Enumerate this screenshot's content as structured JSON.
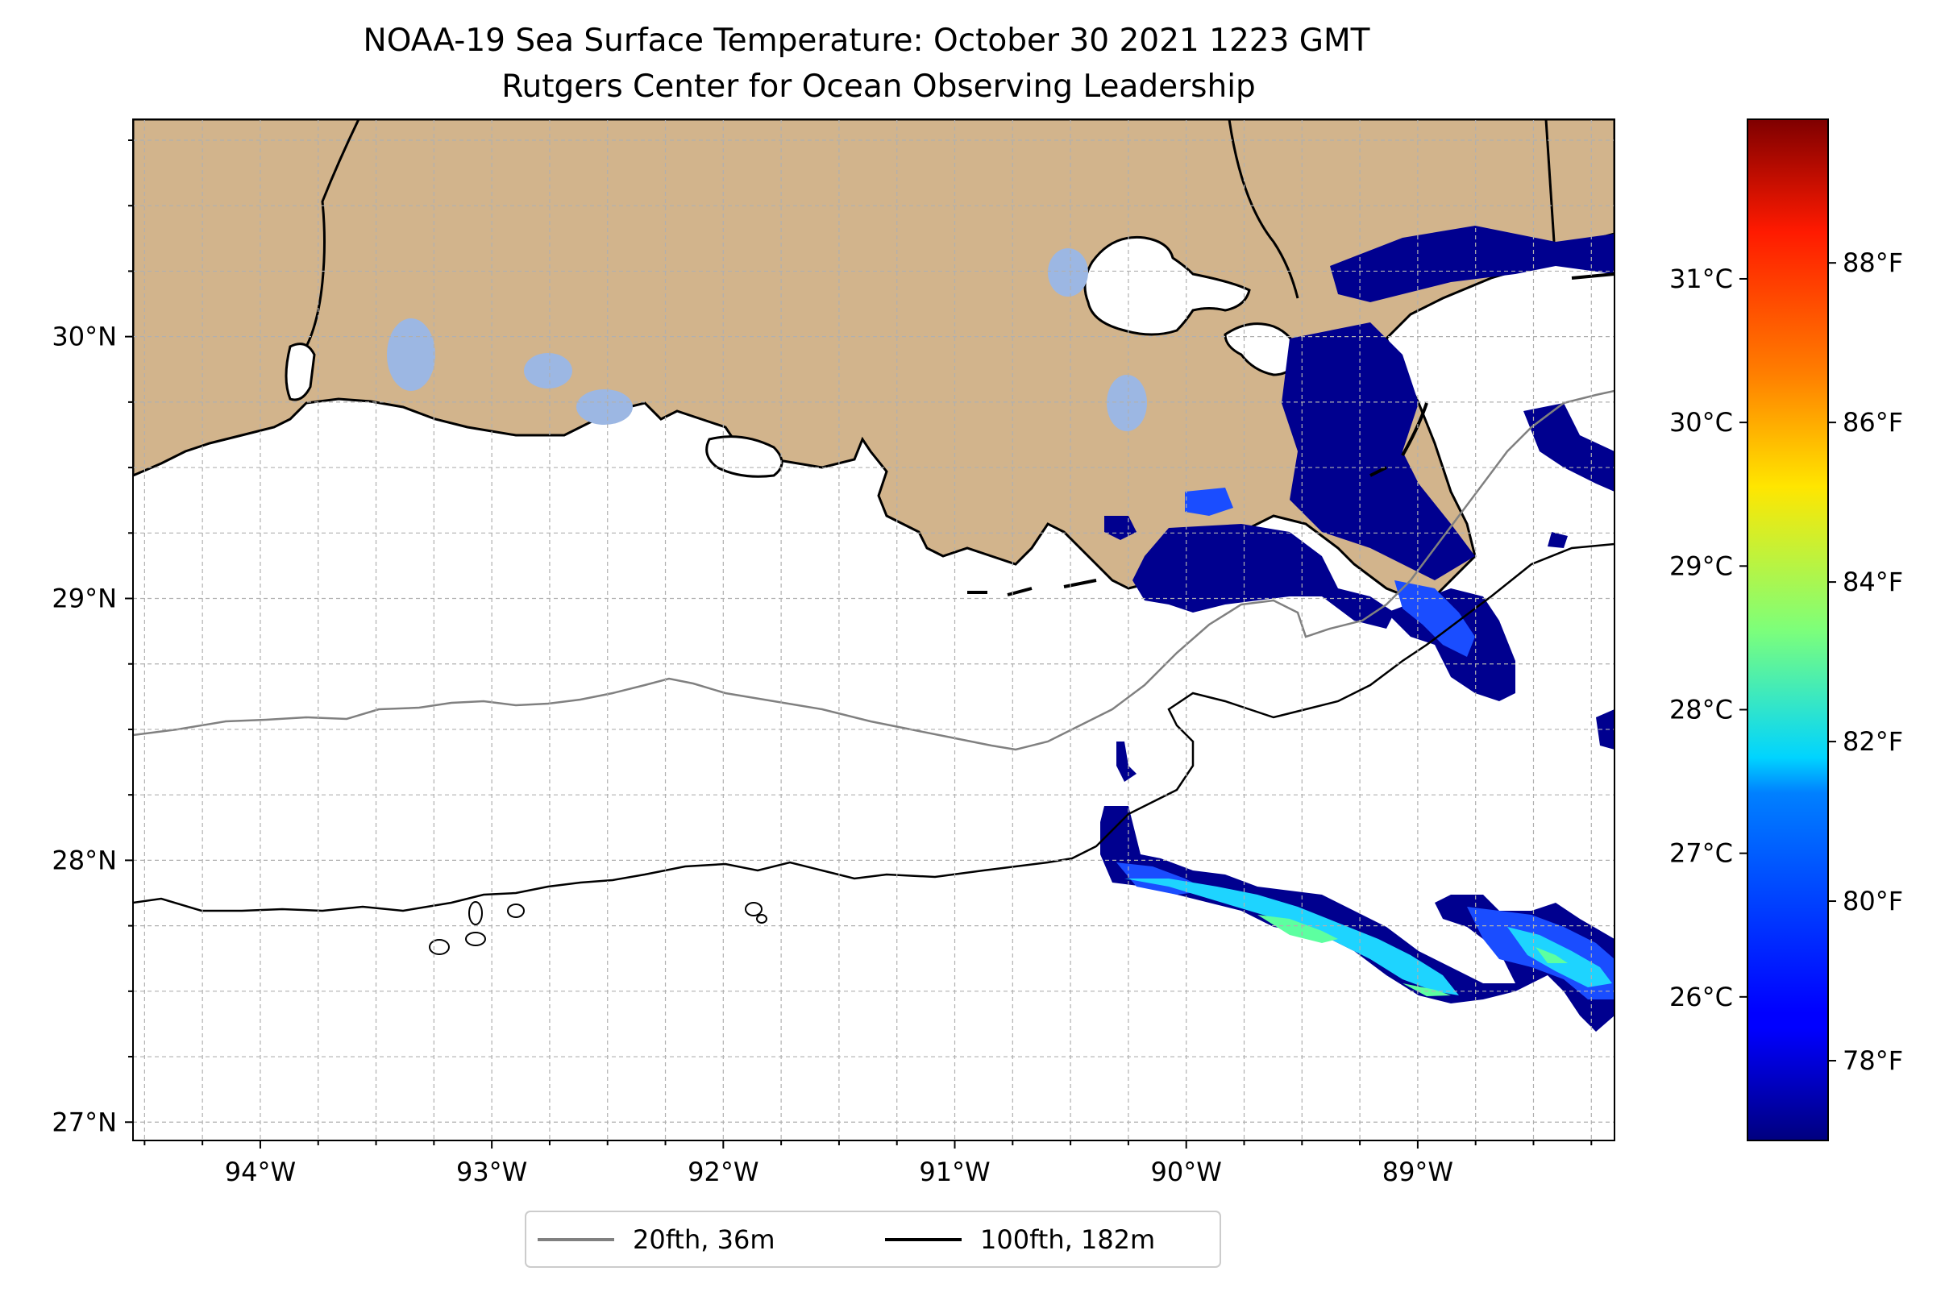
{
  "title": {
    "line1": "NOAA-19 Sea Surface Temperature: October 30 2021 1223 GMT",
    "line2": "Rutgers Center for Ocean Observing Leadership"
  },
  "map": {
    "lon_range": [
      -94.55,
      -88.15
    ],
    "lat_range": [
      26.93,
      30.83
    ],
    "lon_ticks": [
      -94,
      -93,
      -92,
      -91,
      -90,
      -89
    ],
    "lat_ticks": [
      27,
      28,
      29,
      30
    ],
    "lon_labels": [
      "94°W",
      "93°W",
      "92°W",
      "91°W",
      "90°W",
      "89°W"
    ],
    "lat_labels": [
      "27°N",
      "28°N",
      "29°N",
      "30°N"
    ],
    "gridlines": true,
    "land_color": "#d2b48c",
    "lake_color": "#9cb7e3",
    "ocean_color": "#ffffff"
  },
  "legend": {
    "placement": "bottom-center",
    "items": [
      {
        "label": "20fth, 36m",
        "color": "#808080"
      },
      {
        "label": "100fth, 182m",
        "color": "#000000"
      }
    ]
  },
  "colorbar": {
    "colormap": "jet",
    "range_f": [
      77.0,
      89.8
    ],
    "celsius_labels": [
      "26°C",
      "27°C",
      "28°C",
      "29°C",
      "30°C",
      "31°C"
    ],
    "celsius_values": [
      26,
      27,
      28,
      29,
      30,
      31
    ],
    "fahrenheit_labels": [
      "78°F",
      "80°F",
      "82°F",
      "84°F",
      "86°F",
      "88°F"
    ],
    "fahrenheit_values": [
      78,
      80,
      82,
      84,
      86,
      88
    ]
  }
}
